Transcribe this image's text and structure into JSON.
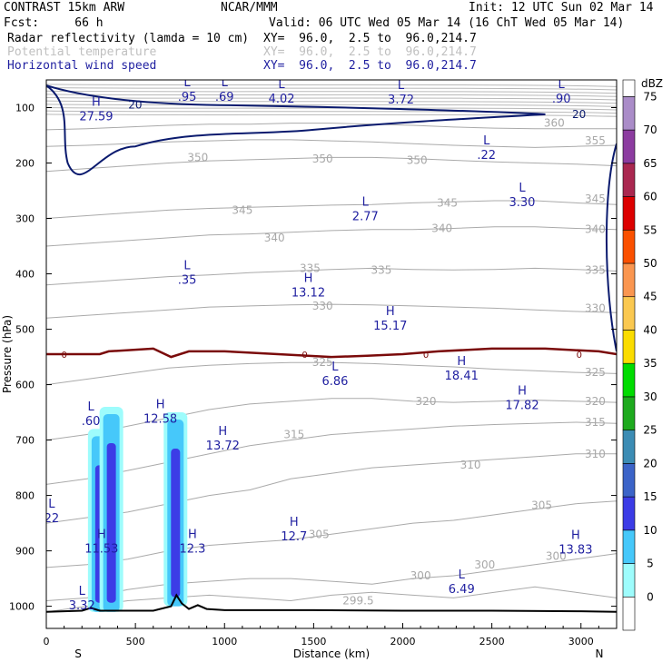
{
  "header": {
    "model": "CONTRAST 15km ARW",
    "center": "NCAR/MMM",
    "init": "Init: 12 UTC Sun 02 Mar 14",
    "fcst": "Fcst:     66 h",
    "valid": "Valid: 06 UTC Wed 05 Mar 14 (16 ChT Wed 05 Mar 14)",
    "fields": [
      {
        "name": "Radar reflectivity (lamda = 10 cm)",
        "xy": "XY=  96.0,  2.5 to  96.0,214.7",
        "style": "black"
      },
      {
        "name": "Potential temperature",
        "xy": "XY=  96.0,  2.5 to  96.0,214.7",
        "style": "grey"
      },
      {
        "name": "Horizontal wind speed",
        "xy": "XY=  96.0,  2.5 to  96.0,214.7",
        "style": "blue"
      }
    ]
  },
  "chart_data": {
    "type": "contour-cross-section",
    "xlabel": "Distance (km)",
    "ylabel": "Pressure (hPa)",
    "xlim": [
      0,
      3200
    ],
    "ylim": [
      1040,
      50
    ],
    "x_ticks": [
      0,
      500,
      1000,
      1500,
      2000,
      2500,
      3000
    ],
    "y_ticks": [
      100,
      200,
      300,
      400,
      500,
      600,
      700,
      800,
      900,
      1000
    ],
    "x_end_labels": [
      "S",
      "N"
    ],
    "colorbar": {
      "title": "dBZ",
      "levels": [
        0,
        5,
        10,
        15,
        20,
        25,
        30,
        35,
        40,
        45,
        50,
        55,
        60,
        65,
        70,
        75
      ],
      "colors": [
        "#ffffff",
        "#9efcfc",
        "#46c8fa",
        "#3c3ce6",
        "#3c64c8",
        "#3c8cb4",
        "#1eaa1e",
        "#00dc00",
        "#fadc00",
        "#fac850",
        "#fa9650",
        "#fa5000",
        "#dc0000",
        "#aa2850",
        "#8c3ca0",
        "#aa8cc8"
      ]
    },
    "isentropes": [
      {
        "theta": 299.5,
        "p": [
          1010,
          1000,
          990,
          985,
          980,
          985,
          990,
          980,
          975,
          980,
          985,
          975,
          965,
          975,
          985
        ]
      },
      {
        "theta": 300,
        "p": [
          990,
          985,
          970,
          960,
          955,
          950,
          950,
          955,
          960,
          950,
          945,
          935,
          925,
          915,
          905
        ]
      },
      {
        "theta": 305,
        "p": [
          930,
          925,
          915,
          900,
          890,
          885,
          880,
          870,
          860,
          850,
          845,
          835,
          825,
          815,
          810
        ]
      },
      {
        "theta": 310,
        "p": [
          850,
          840,
          830,
          815,
          800,
          790,
          770,
          760,
          750,
          745,
          740,
          735,
          730,
          725,
          725
        ]
      },
      {
        "theta": 315,
        "p": [
          780,
          770,
          755,
          740,
          725,
          710,
          700,
          690,
          685,
          680,
          675,
          672,
          670,
          668,
          670
        ]
      },
      {
        "theta": 320,
        "p": [
          700,
          690,
          675,
          660,
          645,
          635,
          630,
          625,
          625,
          630,
          632,
          630,
          628,
          630,
          632
        ]
      },
      {
        "theta": 325,
        "p": [
          600,
          590,
          580,
          570,
          565,
          562,
          560,
          560,
          562,
          565,
          568,
          572,
          575,
          578,
          580
        ]
      },
      {
        "theta": 330,
        "p": [
          480,
          475,
          470,
          465,
          460,
          458,
          456,
          455,
          456,
          458,
          460,
          462,
          465,
          468,
          470
        ]
      },
      {
        "theta": 335,
        "p": [
          420,
          415,
          410,
          405,
          402,
          398,
          395,
          392,
          390,
          392,
          393,
          392,
          390,
          392,
          395
        ]
      },
      {
        "theta": 340,
        "p": [
          350,
          345,
          340,
          335,
          330,
          328,
          325,
          322,
          320,
          320,
          318,
          315,
          315,
          318,
          320
        ]
      },
      {
        "theta": 345,
        "p": [
          300,
          295,
          290,
          285,
          282,
          280,
          278,
          276,
          275,
          272,
          270,
          268,
          268,
          272,
          275
        ]
      },
      {
        "theta": 350,
        "p": [
          215,
          210,
          205,
          200,
          196,
          194,
          192,
          190,
          190,
          192,
          195,
          198,
          200,
          202,
          205
        ]
      },
      {
        "theta": 355,
        "p": [
          170,
          168,
          165,
          162,
          160,
          158,
          158,
          160,
          162,
          165,
          168,
          170,
          172,
          170,
          168
        ]
      },
      {
        "theta": 360,
        "p": [
          140,
          138,
          135,
          132,
          130,
          130,
          128,
          128,
          130,
          132,
          135,
          137,
          138,
          138,
          138
        ]
      }
    ],
    "isentrope_x": [
      0,
      228,
      457,
      685,
      914,
      1142,
      1371,
      1600,
      1828,
      2057,
      2285,
      2514,
      2742,
      2971,
      3200
    ],
    "isentrope_labels": [
      {
        "text": "360",
        "x": 2850,
        "p": 128
      },
      {
        "text": "355",
        "x": 3080,
        "p": 160
      },
      {
        "text": "350",
        "x": 1550,
        "p": 193
      },
      {
        "text": "350",
        "x": 850,
        "p": 190
      },
      {
        "text": "350",
        "x": 2080,
        "p": 195
      },
      {
        "text": "345",
        "x": 1100,
        "p": 285
      },
      {
        "text": "345",
        "x": 2250,
        "p": 272
      },
      {
        "text": "345",
        "x": 3080,
        "p": 265
      },
      {
        "text": "340",
        "x": 1280,
        "p": 335
      },
      {
        "text": "340",
        "x": 2220,
        "p": 318
      },
      {
        "text": "340",
        "x": 3080,
        "p": 320
      },
      {
        "text": "335",
        "x": 1480,
        "p": 390
      },
      {
        "text": "335",
        "x": 1880,
        "p": 393
      },
      {
        "text": "335",
        "x": 3080,
        "p": 393
      },
      {
        "text": "330",
        "x": 1550,
        "p": 458
      },
      {
        "text": "330",
        "x": 3080,
        "p": 462
      },
      {
        "text": "325",
        "x": 1550,
        "p": 560
      },
      {
        "text": "325",
        "x": 3080,
        "p": 578
      },
      {
        "text": "320",
        "x": 2130,
        "p": 630
      },
      {
        "text": "320",
        "x": 3080,
        "p": 630
      },
      {
        "text": "315",
        "x": 1390,
        "p": 690
      },
      {
        "text": "315",
        "x": 3080,
        "p": 668
      },
      {
        "text": "310",
        "x": 2380,
        "p": 745
      },
      {
        "text": "310",
        "x": 3080,
        "p": 725
      },
      {
        "text": "305",
        "x": 1530,
        "p": 870
      },
      {
        "text": "305",
        "x": 2780,
        "p": 818
      },
      {
        "text": "300",
        "x": 2100,
        "p": 945
      },
      {
        "text": "300",
        "x": 2460,
        "p": 925
      },
      {
        "text": "300",
        "x": 2860,
        "p": 910
      },
      {
        "text": "299.5",
        "x": 1750,
        "p": 990
      }
    ],
    "freezing_level": {
      "label": "0",
      "x": [
        0,
        300,
        350,
        600,
        700,
        800,
        1000,
        1300,
        1600,
        1800,
        2000,
        2200,
        2500,
        2800,
        3100,
        3200
      ],
      "p": [
        545,
        545,
        540,
        535,
        550,
        540,
        540,
        545,
        550,
        548,
        545,
        540,
        535,
        535,
        540,
        545
      ]
    },
    "wind_speed_contour": {
      "value": 20,
      "label": "20"
    },
    "reflectivity_cells": [
      {
        "x_center": 300,
        "p_top": 680,
        "p_bottom": 1010,
        "max_dbz": 20
      },
      {
        "x_center": 365,
        "p_top": 640,
        "p_bottom": 1010,
        "max_dbz": 15
      },
      {
        "x_center": 725,
        "p_top": 650,
        "p_bottom": 1000,
        "max_dbz": 20
      }
    ],
    "surface_pressure": {
      "x": [
        0,
        200,
        250,
        300,
        600,
        700,
        730,
        760,
        800,
        850,
        900,
        1000,
        1500,
        2000,
        2500,
        3000,
        3200
      ],
      "p": [
        1010,
        1008,
        1003,
        1008,
        1008,
        1000,
        980,
        995,
        1005,
        998,
        1005,
        1007,
        1007,
        1008,
        1008,
        1009,
        1010
      ]
    },
    "extrema": [
      {
        "type": "H",
        "value": "27.59",
        "x": 280,
        "p": 100
      },
      {
        "type": "L",
        "value": ".95",
        "x": 790,
        "p": 65
      },
      {
        "type": "L",
        "value": ".69",
        "x": 1000,
        "p": 65
      },
      {
        "type": "L",
        "value": "4.02",
        "x": 1320,
        "p": 68
      },
      {
        "type": "L",
        "value": "3.72",
        "x": 1990,
        "p": 70
      },
      {
        "type": "L",
        "value": ".90",
        "x": 2890,
        "p": 68
      },
      {
        "type": "L",
        "value": ".22",
        "x": 2470,
        "p": 170
      },
      {
        "type": "L",
        "value": "3.30",
        "x": 2670,
        "p": 255
      },
      {
        "type": "L",
        "value": "2.77",
        "x": 1790,
        "p": 280
      },
      {
        "type": "L",
        "value": ".35",
        "x": 790,
        "p": 395
      },
      {
        "type": "H",
        "value": "13.12",
        "x": 1470,
        "p": 418
      },
      {
        "type": "H",
        "value": "15.17",
        "x": 1930,
        "p": 478
      },
      {
        "type": "L",
        "value": "6.86",
        "x": 1620,
        "p": 578
      },
      {
        "type": "H",
        "value": "18.41",
        "x": 2330,
        "p": 568
      },
      {
        "type": "H",
        "value": "17.82",
        "x": 2670,
        "p": 621
      },
      {
        "type": "L",
        "value": ".60",
        "x": 250,
        "p": 650
      },
      {
        "type": "H",
        "value": "12.58",
        "x": 640,
        "p": 646
      },
      {
        "type": "H",
        "value": "13.72",
        "x": 990,
        "p": 694
      },
      {
        "type": "L",
        "value": "22",
        "x": 30,
        "p": 825
      },
      {
        "type": "H",
        "value": "11.53",
        "x": 310,
        "p": 880
      },
      {
        "type": "H",
        "value": "12.3",
        "x": 820,
        "p": 880
      },
      {
        "type": "H",
        "value": "12.7",
        "x": 1390,
        "p": 858
      },
      {
        "type": "H",
        "value": "13.83",
        "x": 2970,
        "p": 882
      },
      {
        "type": "L",
        "value": "6.49",
        "x": 2330,
        "p": 953
      },
      {
        "type": "L",
        "value": "3.32",
        "x": 200,
        "p": 983
      }
    ]
  }
}
